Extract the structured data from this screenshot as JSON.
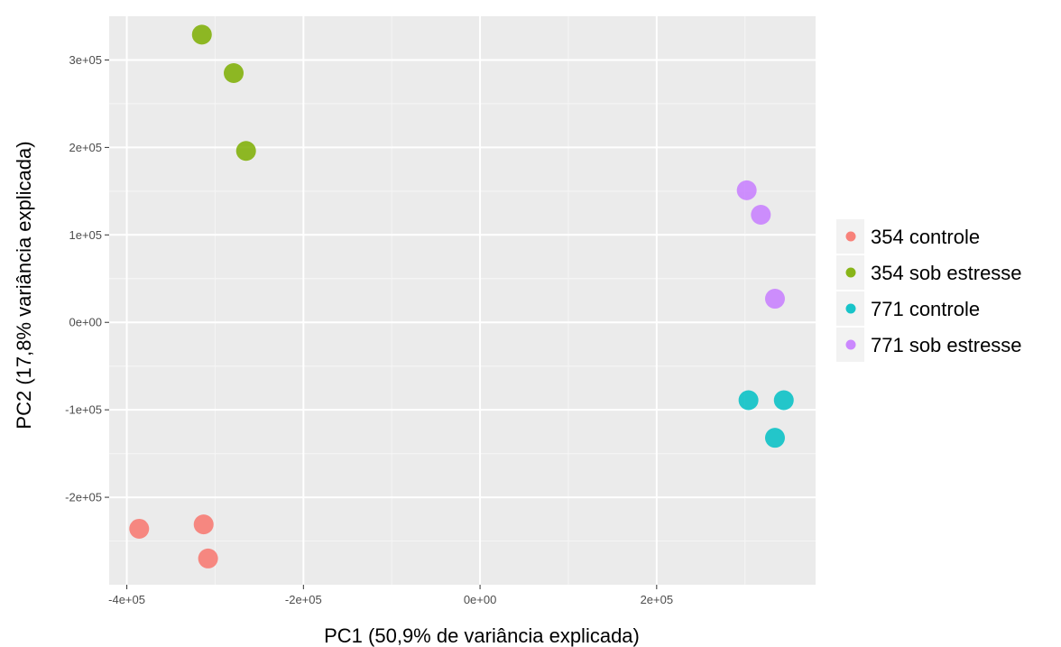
{
  "chart_data": {
    "type": "scatter",
    "title": "",
    "xlabel": "PC1 (50,9% de variância explicada)",
    "ylabel": "PC2 (17,8% variância explicada)",
    "xlim": [
      -420000,
      380000
    ],
    "ylim": [
      -300000,
      350000
    ],
    "x_ticks": [
      {
        "value": -400000,
        "label": "-4e+05"
      },
      {
        "value": -200000,
        "label": "-2e+05"
      },
      {
        "value": 0,
        "label": "0e+00"
      },
      {
        "value": 200000,
        "label": "2e+05"
      }
    ],
    "y_ticks": [
      {
        "value": -200000,
        "label": "-2e+05"
      },
      {
        "value": -100000,
        "label": "-1e+05"
      },
      {
        "value": 0,
        "label": "0e+00"
      },
      {
        "value": 100000,
        "label": "1e+05"
      },
      {
        "value": 200000,
        "label": "2e+05"
      },
      {
        "value": 300000,
        "label": "3e+05"
      }
    ],
    "grid": true,
    "background": "#ebebeb",
    "legend_position": "right",
    "series": [
      {
        "name": "354 controle",
        "color": "#f8766d",
        "points": [
          {
            "x": -386000,
            "y": -236000
          },
          {
            "x": -313000,
            "y": -231000
          },
          {
            "x": -308000,
            "y": -270000
          }
        ]
      },
      {
        "name": "354 sob estresse",
        "color": "#7cae00",
        "points": [
          {
            "x": -315000,
            "y": 329000
          },
          {
            "x": -279000,
            "y": 285000
          },
          {
            "x": -265000,
            "y": 196000
          }
        ]
      },
      {
        "name": "771 controle",
        "color": "#00bfc4",
        "points": [
          {
            "x": 304000,
            "y": -89000
          },
          {
            "x": 344000,
            "y": -89000
          },
          {
            "x": 334000,
            "y": -132000
          }
        ]
      },
      {
        "name": "771 sob estresse",
        "color": "#c77cff",
        "points": [
          {
            "x": 302000,
            "y": 151000
          },
          {
            "x": 318000,
            "y": 123000
          },
          {
            "x": 334000,
            "y": 27000
          }
        ]
      }
    ]
  }
}
